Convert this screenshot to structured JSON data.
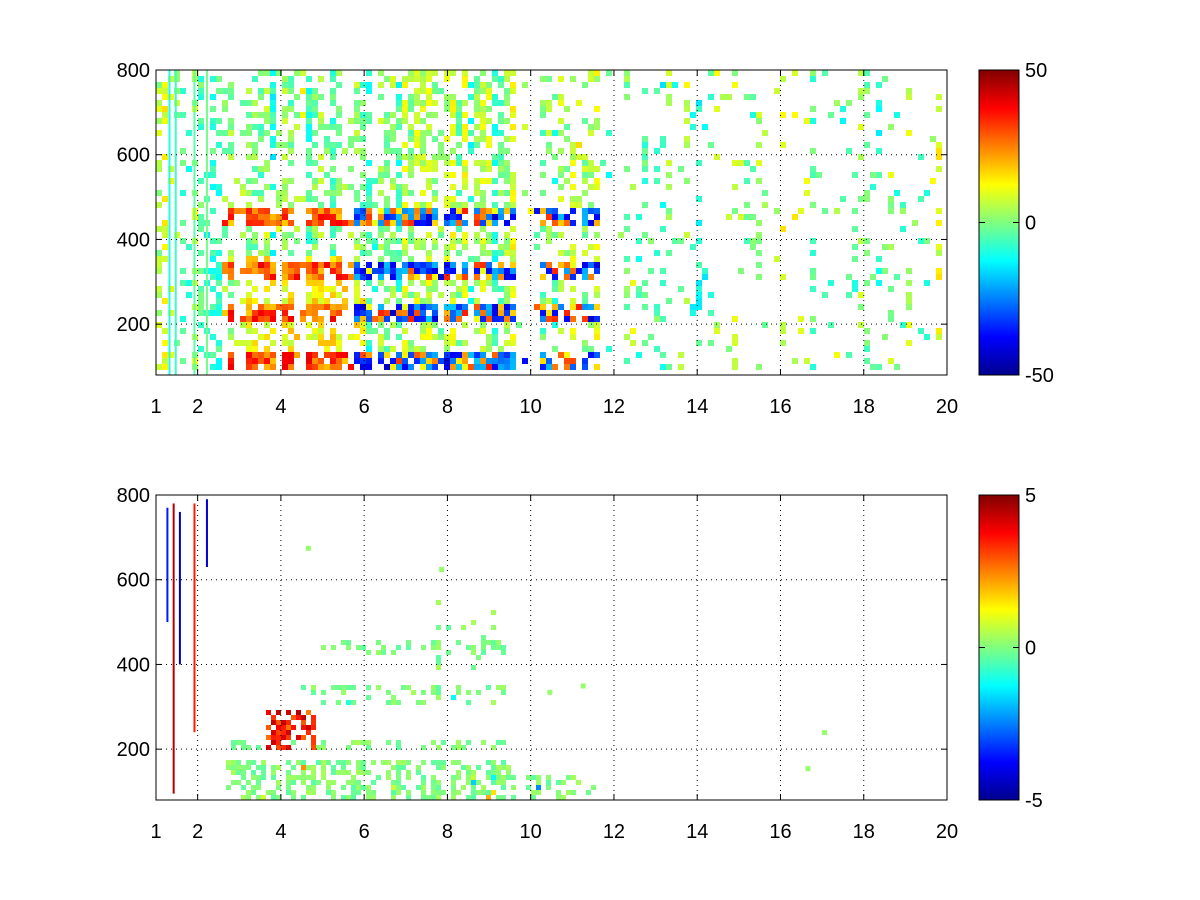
{
  "chart_data": [
    {
      "type": "heatmap",
      "name": "top-panel",
      "title": "",
      "xlabel": "",
      "ylabel": "",
      "xlim": [
        1,
        20
      ],
      "ylim": [
        80,
        800
      ],
      "xticks": [
        1,
        2,
        4,
        6,
        8,
        10,
        12,
        14,
        16,
        18,
        20
      ],
      "xtick_labels": [
        "1",
        "2",
        "4",
        "6",
        "8",
        "10",
        "12",
        "14",
        "16",
        "18",
        "20"
      ],
      "yticks": [
        200,
        400,
        600,
        800
      ],
      "ytick_labels": [
        "200",
        "400",
        "600",
        "800"
      ],
      "grid": true,
      "colormap": "jet",
      "colorbar": {
        "range": [
          -50,
          50
        ],
        "ticks": [
          50,
          0,
          -50
        ],
        "tick_labels": [
          "50",
          "0",
          "-50"
        ]
      },
      "bands_y": [
        100,
        210,
        320,
        440
      ],
      "activity_x_range": [
        2.5,
        11.6
      ],
      "sparse_x_range": [
        1,
        20
      ]
    },
    {
      "type": "heatmap",
      "name": "bottom-panel",
      "title": "",
      "xlabel": "",
      "ylabel": "",
      "xlim": [
        1,
        20
      ],
      "ylim": [
        80,
        800
      ],
      "xticks": [
        1,
        2,
        4,
        6,
        8,
        10,
        12,
        14,
        16,
        18,
        20
      ],
      "xtick_labels": [
        "1",
        "2",
        "4",
        "6",
        "8",
        "10",
        "12",
        "14",
        "16",
        "18",
        "20"
      ],
      "yticks": [
        200,
        400,
        600,
        800
      ],
      "ytick_labels": [
        "200",
        "400",
        "600",
        "800"
      ],
      "grid": true,
      "colormap": "jet",
      "colorbar": {
        "range": [
          -5,
          5
        ],
        "ticks": [
          5,
          0,
          -5
        ],
        "tick_labels": [
          "5",
          "0",
          "-5"
        ]
      },
      "hotspot": {
        "x": [
          3.6,
          4.9
        ],
        "y": [
          200,
          290
        ],
        "value": 4
      },
      "activity_x_range": [
        2.5,
        11.6
      ]
    }
  ]
}
